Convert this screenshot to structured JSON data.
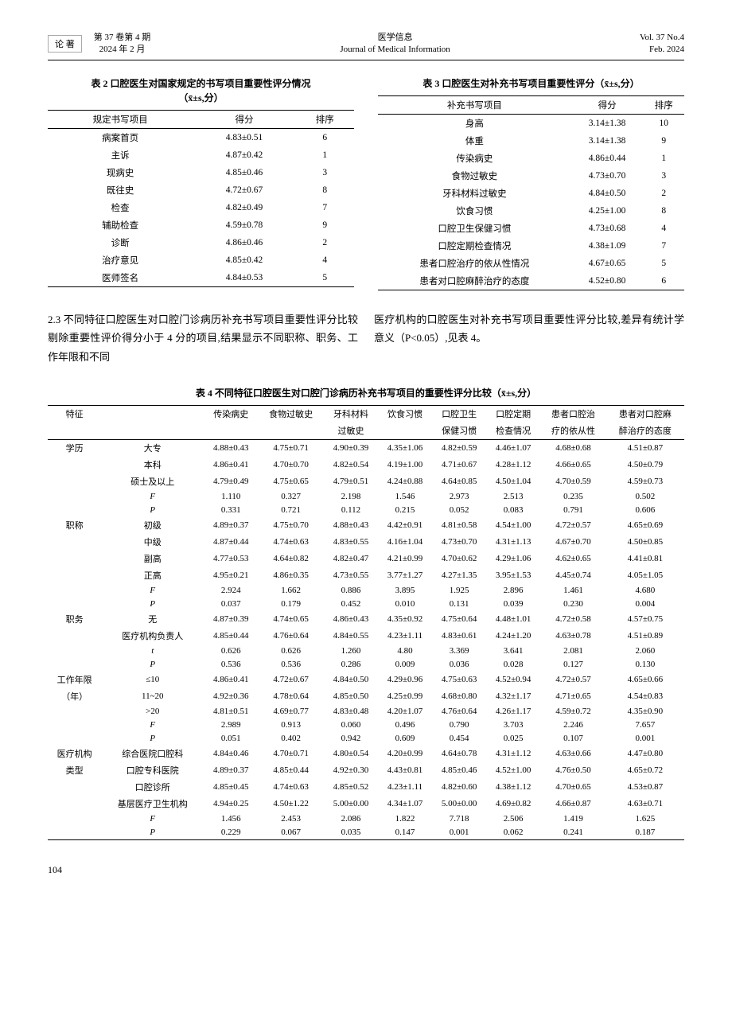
{
  "header": {
    "logo": "论 著",
    "vol_cn": "第 37 卷第 4 期",
    "date_cn": "2024 年 2 月",
    "journal_cn": "医学信息",
    "journal_en": "Journal of Medical Information",
    "vol_en": "Vol. 37 No.4",
    "date_en": "Feb. 2024"
  },
  "table2": {
    "title": "表 2  口腔医生对国家规定的书写项目重要性评分情况",
    "subtitle": "（x̄±s,分）",
    "cols": [
      "规定书写项目",
      "得分",
      "排序"
    ],
    "rows": [
      [
        "病案首页",
        "4.83±0.51",
        "6"
      ],
      [
        "主诉",
        "4.87±0.42",
        "1"
      ],
      [
        "现病史",
        "4.85±0.46",
        "3"
      ],
      [
        "既往史",
        "4.72±0.67",
        "8"
      ],
      [
        "检查",
        "4.82±0.49",
        "7"
      ],
      [
        "辅助检查",
        "4.59±0.78",
        "9"
      ],
      [
        "诊断",
        "4.86±0.46",
        "2"
      ],
      [
        "治疗意见",
        "4.85±0.42",
        "4"
      ],
      [
        "医师签名",
        "4.84±0.53",
        "5"
      ]
    ]
  },
  "table3": {
    "title": "表 3  口腔医生对补充书写项目重要性评分（x̄±s,分）",
    "cols": [
      "补充书写项目",
      "得分",
      "排序"
    ],
    "rows": [
      [
        "身高",
        "3.14±1.38",
        "10"
      ],
      [
        "体重",
        "3.14±1.38",
        "9"
      ],
      [
        "传染病史",
        "4.86±0.44",
        "1"
      ],
      [
        "食物过敏史",
        "4.73±0.70",
        "3"
      ],
      [
        "牙科材料过敏史",
        "4.84±0.50",
        "2"
      ],
      [
        "饮食习惯",
        "4.25±1.00",
        "8"
      ],
      [
        "口腔卫生保健习惯",
        "4.73±0.68",
        "4"
      ],
      [
        "口腔定期检查情况",
        "4.38±1.09",
        "7"
      ],
      [
        "患者口腔治疗的依从性情况",
        "4.67±0.65",
        "5"
      ],
      [
        "患者对口腔麻醉治疗的态度",
        "4.52±0.80",
        "6"
      ]
    ]
  },
  "paragraph": {
    "left": "2.3 不同特征口腔医生对口腔门诊病历补充书写项目重要性评分比较  剔除重要性评价得分小于 4 分的项目,结果显示不同职称、职务、工作年限和不同",
    "right": "医疗机构的口腔医生对补充书写项目重要性评分比较,差异有统计学意义（P<0.05）,见表 4。"
  },
  "table4": {
    "title": "表 4  不同特征口腔医生对口腔门诊病历补充书写项目的重要性评分比较（x̄±s,分）",
    "head_r1": [
      "特征",
      "",
      "传染病史",
      "食物过敏史",
      "牙科材料",
      "饮食习惯",
      "口腔卫生",
      "口腔定期",
      "患者口腔治",
      "患者对口腔麻"
    ],
    "head_r2": [
      "",
      "",
      "",
      "",
      "过敏史",
      "",
      "保健习惯",
      "检查情况",
      "疗的依从性",
      "醉治疗的态度"
    ],
    "groups": [
      {
        "label": "学历",
        "rows": [
          [
            "大专",
            "4.88±0.43",
            "4.75±0.71",
            "4.90±0.39",
            "4.35±1.06",
            "4.82±0.59",
            "4.46±1.07",
            "4.68±0.68",
            "4.51±0.87"
          ],
          [
            "本科",
            "4.86±0.41",
            "4.70±0.70",
            "4.82±0.54",
            "4.19±1.00",
            "4.71±0.67",
            "4.28±1.12",
            "4.66±0.65",
            "4.50±0.79"
          ],
          [
            "硕士及以上",
            "4.79±0.49",
            "4.75±0.65",
            "4.79±0.51",
            "4.24±0.88",
            "4.64±0.85",
            "4.50±1.04",
            "4.70±0.59",
            "4.59±0.73"
          ],
          [
            "F",
            "1.110",
            "0.327",
            "2.198",
            "1.546",
            "2.973",
            "2.513",
            "0.235",
            "0.502"
          ],
          [
            "P",
            "0.331",
            "0.721",
            "0.112",
            "0.215",
            "0.052",
            "0.083",
            "0.791",
            "0.606"
          ]
        ]
      },
      {
        "label": "职称",
        "rows": [
          [
            "初级",
            "4.89±0.37",
            "4.75±0.70",
            "4.88±0.43",
            "4.42±0.91",
            "4.81±0.58",
            "4.54±1.00",
            "4.72±0.57",
            "4.65±0.69"
          ],
          [
            "中级",
            "4.87±0.44",
            "4.74±0.63",
            "4.83±0.55",
            "4.16±1.04",
            "4.73±0.70",
            "4.31±1.13",
            "4.67±0.70",
            "4.50±0.85"
          ],
          [
            "副高",
            "4.77±0.53",
            "4.64±0.82",
            "4.82±0.47",
            "4.21±0.99",
            "4.70±0.62",
            "4.29±1.06",
            "4.62±0.65",
            "4.41±0.81"
          ],
          [
            "正高",
            "4.95±0.21",
            "4.86±0.35",
            "4.73±0.55",
            "3.77±1.27",
            "4.27±1.35",
            "3.95±1.53",
            "4.45±0.74",
            "4.05±1.05"
          ],
          [
            "F",
            "2.924",
            "1.662",
            "0.886",
            "3.895",
            "1.925",
            "2.896",
            "1.461",
            "4.680"
          ],
          [
            "P",
            "0.037",
            "0.179",
            "0.452",
            "0.010",
            "0.131",
            "0.039",
            "0.230",
            "0.004"
          ]
        ]
      },
      {
        "label": "职务",
        "rows": [
          [
            "无",
            "4.87±0.39",
            "4.74±0.65",
            "4.86±0.43",
            "4.35±0.92",
            "4.75±0.64",
            "4.48±1.01",
            "4.72±0.58",
            "4.57±0.75"
          ],
          [
            "医疗机构负责人",
            "4.85±0.44",
            "4.76±0.64",
            "4.84±0.55",
            "4.23±1.11",
            "4.83±0.61",
            "4.24±1.20",
            "4.63±0.78",
            "4.51±0.89"
          ],
          [
            "t",
            "0.626",
            "0.626",
            "1.260",
            "4.80",
            "3.369",
            "3.641",
            "2.081",
            "2.060"
          ],
          [
            "P",
            "0.536",
            "0.536",
            "0.286",
            "0.009",
            "0.036",
            "0.028",
            "0.127",
            "0.130"
          ]
        ]
      },
      {
        "label": "工作年限",
        "label2": "（年）",
        "rows": [
          [
            "≤10",
            "4.86±0.41",
            "4.72±0.67",
            "4.84±0.50",
            "4.29±0.96",
            "4.75±0.63",
            "4.52±0.94",
            "4.72±0.57",
            "4.65±0.66"
          ],
          [
            "11~20",
            "4.92±0.36",
            "4.78±0.64",
            "4.85±0.50",
            "4.25±0.99",
            "4.68±0.80",
            "4.32±1.17",
            "4.71±0.65",
            "4.54±0.83"
          ],
          [
            ">20",
            "4.81±0.51",
            "4.69±0.77",
            "4.83±0.48",
            "4.20±1.07",
            "4.76±0.64",
            "4.26±1.17",
            "4.59±0.72",
            "4.35±0.90"
          ],
          [
            "F",
            "2.989",
            "0.913",
            "0.060",
            "0.496",
            "0.790",
            "3.703",
            "2.246",
            "7.657"
          ],
          [
            "P",
            "0.051",
            "0.402",
            "0.942",
            "0.609",
            "0.454",
            "0.025",
            "0.107",
            "0.001"
          ]
        ]
      },
      {
        "label": "医疗机构",
        "label2": "类型",
        "rows": [
          [
            "综合医院口腔科",
            "4.84±0.46",
            "4.70±0.71",
            "4.80±0.54",
            "4.20±0.99",
            "4.64±0.78",
            "4.31±1.12",
            "4.63±0.66",
            "4.47±0.80"
          ],
          [
            "口腔专科医院",
            "4.89±0.37",
            "4.85±0.44",
            "4.92±0.30",
            "4.43±0.81",
            "4.85±0.46",
            "4.52±1.00",
            "4.76±0.50",
            "4.65±0.72"
          ],
          [
            "口腔诊所",
            "4.85±0.45",
            "4.74±0.63",
            "4.85±0.52",
            "4.23±1.11",
            "4.82±0.60",
            "4.38±1.12",
            "4.70±0.65",
            "4.53±0.87"
          ],
          [
            "基层医疗卫生机构",
            "4.94±0.25",
            "4.50±1.22",
            "5.00±0.00",
            "4.34±1.07",
            "5.00±0.00",
            "4.69±0.82",
            "4.66±0.87",
            "4.63±0.71"
          ],
          [
            "F",
            "1.456",
            "2.453",
            "2.086",
            "1.822",
            "7.718",
            "2.506",
            "1.419",
            "1.625"
          ],
          [
            "P",
            "0.229",
            "0.067",
            "0.035",
            "0.147",
            "0.001",
            "0.062",
            "0.241",
            "0.187"
          ]
        ]
      }
    ]
  },
  "page_num": "104"
}
